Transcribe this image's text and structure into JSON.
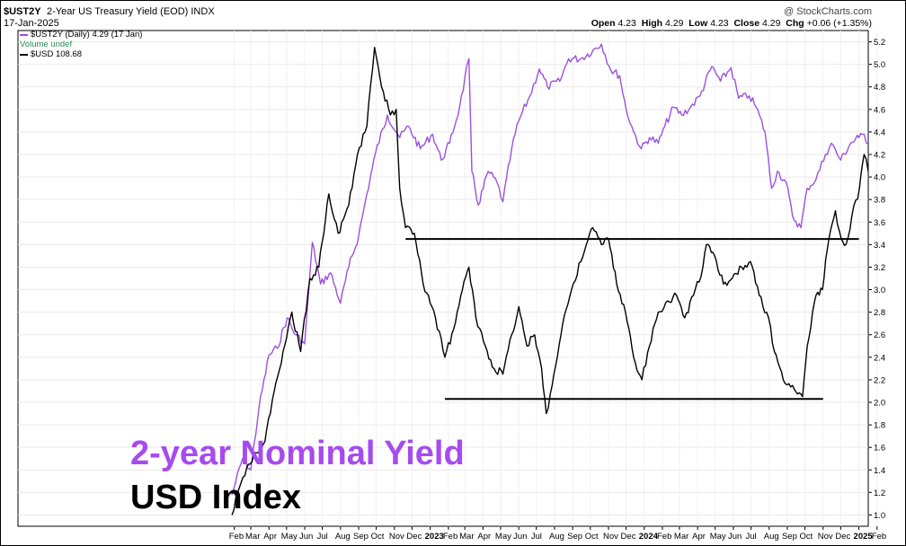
{
  "header": {
    "symbol": "$UST2Y",
    "subtitle": "2-Year US Treasury Yield (EOD)  INDX",
    "date": "17-Jan-2025",
    "brand": "@ StockCharts.com",
    "ohlc": {
      "open_label": "Open",
      "open": "4.23",
      "high_label": "High",
      "high": "4.29",
      "low_label": "Low",
      "low": "4.23",
      "close_label": "Close",
      "close": "4.29",
      "chg_label": "Chg",
      "chg": "+0.06 (+1.35%)"
    }
  },
  "legend": {
    "items": [
      {
        "label": "$UST2Y (Daily) 4.29 (17 Jan)",
        "color": "#9b51e0"
      },
      {
        "label": "Volume undef",
        "color": "#2e8b57"
      },
      {
        "label": "$USD 108.68",
        "color": "#000000"
      }
    ]
  },
  "annotations": {
    "line1": "2-year Nominal Yield",
    "line1_color": "#a64bf0",
    "line2": "USD Index",
    "line2_color": "#000000"
  },
  "chart_data": {
    "type": "line",
    "x_start": "2021-01-28",
    "x_end": "2025-01-17",
    "x_axis_ticks": [
      "Feb",
      "Mar",
      "Apr",
      "May",
      "Jun",
      "Jul",
      "Aug",
      "Sep",
      "Oct",
      "Nov",
      "Dec",
      "2023",
      "Feb",
      "Mar",
      "Apr",
      "May",
      "Jun",
      "Jul",
      "Aug",
      "Sep",
      "Oct",
      "Nov",
      "Dec",
      "2024",
      "Feb",
      "Mar",
      "Apr",
      "May",
      "Jun",
      "Jul",
      "Aug",
      "Sep",
      "Oct",
      "Nov",
      "Dec",
      "2025",
      "Feb"
    ],
    "ylim": [
      0.9,
      5.3
    ],
    "y_ticks": [
      1.0,
      1.2,
      1.4,
      1.6,
      1.8,
      2.0,
      2.2,
      2.4,
      2.6,
      2.8,
      3.0,
      3.2,
      3.4,
      3.6,
      3.8,
      4.0,
      4.2,
      4.4,
      4.6,
      4.8,
      5.0,
      5.2
    ],
    "grid": true,
    "legend_position": "top-left",
    "series": [
      {
        "name": "$UST2Y",
        "color": "#9b51e0",
        "points": [
          [
            "2022-01-28",
            1.18
          ],
          [
            "2022-02-15",
            1.5
          ],
          [
            "2022-03-01",
            1.4
          ],
          [
            "2022-03-15",
            1.95
          ],
          [
            "2022-04-01",
            2.42
          ],
          [
            "2022-04-15",
            2.48
          ],
          [
            "2022-05-02",
            2.75
          ],
          [
            "2022-05-16",
            2.6
          ],
          [
            "2022-06-01",
            2.52
          ],
          [
            "2022-06-14",
            3.42
          ],
          [
            "2022-06-28",
            3.05
          ],
          [
            "2022-07-15",
            3.15
          ],
          [
            "2022-08-01",
            2.88
          ],
          [
            "2022-08-15",
            3.2
          ],
          [
            "2022-09-01",
            3.48
          ],
          [
            "2022-09-15",
            3.85
          ],
          [
            "2022-09-30",
            4.22
          ],
          [
            "2022-10-20",
            4.55
          ],
          [
            "2022-11-10",
            4.35
          ],
          [
            "2022-11-25",
            4.45
          ],
          [
            "2022-12-15",
            4.25
          ],
          [
            "2023-01-05",
            4.38
          ],
          [
            "2023-01-20",
            4.15
          ],
          [
            "2023-02-03",
            4.3
          ],
          [
            "2023-02-20",
            4.62
          ],
          [
            "2023-03-08",
            5.05
          ],
          [
            "2023-03-13",
            4.05
          ],
          [
            "2023-03-24",
            3.75
          ],
          [
            "2023-04-10",
            4.05
          ],
          [
            "2023-04-25",
            3.95
          ],
          [
            "2023-05-05",
            3.78
          ],
          [
            "2023-05-20",
            4.25
          ],
          [
            "2023-06-01",
            4.5
          ],
          [
            "2023-06-20",
            4.72
          ],
          [
            "2023-07-06",
            4.96
          ],
          [
            "2023-07-20",
            4.8
          ],
          [
            "2023-08-10",
            4.85
          ],
          [
            "2023-08-25",
            5.05
          ],
          [
            "2023-09-15",
            5.05
          ],
          [
            "2023-10-05",
            5.12
          ],
          [
            "2023-10-20",
            5.18
          ],
          [
            "2023-11-05",
            4.95
          ],
          [
            "2023-11-20",
            4.9
          ],
          [
            "2023-12-01",
            4.6
          ],
          [
            "2023-12-14",
            4.4
          ],
          [
            "2023-12-27",
            4.25
          ],
          [
            "2024-01-10",
            4.35
          ],
          [
            "2024-01-25",
            4.3
          ],
          [
            "2024-02-05",
            4.45
          ],
          [
            "2024-02-20",
            4.62
          ],
          [
            "2024-03-05",
            4.55
          ],
          [
            "2024-03-20",
            4.62
          ],
          [
            "2024-04-05",
            4.72
          ],
          [
            "2024-04-25",
            4.98
          ],
          [
            "2024-05-10",
            4.85
          ],
          [
            "2024-05-28",
            4.97
          ],
          [
            "2024-06-10",
            4.7
          ],
          [
            "2024-06-28",
            4.72
          ],
          [
            "2024-07-10",
            4.62
          ],
          [
            "2024-07-25",
            4.4
          ],
          [
            "2024-08-05",
            3.9
          ],
          [
            "2024-08-15",
            4.05
          ],
          [
            "2024-08-30",
            3.95
          ],
          [
            "2024-09-10",
            3.65
          ],
          [
            "2024-09-24",
            3.55
          ],
          [
            "2024-10-05",
            3.9
          ],
          [
            "2024-10-20",
            3.98
          ],
          [
            "2024-11-05",
            4.2
          ],
          [
            "2024-11-15",
            4.3
          ],
          [
            "2024-12-01",
            4.15
          ],
          [
            "2024-12-18",
            4.3
          ],
          [
            "2025-01-01",
            4.35
          ],
          [
            "2025-01-10",
            4.38
          ],
          [
            "2025-01-17",
            4.29
          ]
        ]
      },
      {
        "name": "$USD",
        "color": "#000000",
        "points": [
          [
            "2022-01-28",
            1.0
          ],
          [
            "2022-02-10",
            1.25
          ],
          [
            "2022-02-25",
            1.45
          ],
          [
            "2022-03-10",
            1.55
          ],
          [
            "2022-03-25",
            1.65
          ],
          [
            "2022-04-10",
            2.1
          ],
          [
            "2022-04-25",
            2.45
          ],
          [
            "2022-05-10",
            2.8
          ],
          [
            "2022-05-25",
            2.45
          ],
          [
            "2022-06-10",
            3.1
          ],
          [
            "2022-06-25",
            3.2
          ],
          [
            "2022-07-12",
            3.85
          ],
          [
            "2022-07-28",
            3.5
          ],
          [
            "2022-08-15",
            3.75
          ],
          [
            "2022-08-30",
            4.2
          ],
          [
            "2022-09-15",
            4.45
          ],
          [
            "2022-09-28",
            5.15
          ],
          [
            "2022-10-10",
            4.8
          ],
          [
            "2022-10-25",
            4.55
          ],
          [
            "2022-11-04",
            4.6
          ],
          [
            "2022-11-10",
            3.9
          ],
          [
            "2022-11-20",
            3.55
          ],
          [
            "2022-12-05",
            3.5
          ],
          [
            "2022-12-20",
            3.05
          ],
          [
            "2023-01-10",
            2.75
          ],
          [
            "2023-01-26",
            2.4
          ],
          [
            "2023-02-10",
            2.65
          ],
          [
            "2023-02-25",
            3.0
          ],
          [
            "2023-03-08",
            3.2
          ],
          [
            "2023-03-20",
            2.75
          ],
          [
            "2023-04-05",
            2.5
          ],
          [
            "2023-04-20",
            2.3
          ],
          [
            "2023-05-05",
            2.25
          ],
          [
            "2023-05-20",
            2.6
          ],
          [
            "2023-06-01",
            2.85
          ],
          [
            "2023-06-15",
            2.5
          ],
          [
            "2023-06-28",
            2.6
          ],
          [
            "2023-07-10",
            2.3
          ],
          [
            "2023-07-18",
            1.9
          ],
          [
            "2023-07-28",
            2.15
          ],
          [
            "2023-08-15",
            2.7
          ],
          [
            "2023-08-30",
            3.0
          ],
          [
            "2023-09-15",
            3.25
          ],
          [
            "2023-09-30",
            3.5
          ],
          [
            "2023-10-05",
            3.55
          ],
          [
            "2023-10-20",
            3.4
          ],
          [
            "2023-11-01",
            3.45
          ],
          [
            "2023-11-15",
            3.05
          ],
          [
            "2023-11-30",
            2.8
          ],
          [
            "2023-12-14",
            2.4
          ],
          [
            "2023-12-28",
            2.2
          ],
          [
            "2024-01-10",
            2.5
          ],
          [
            "2024-01-25",
            2.8
          ],
          [
            "2024-02-10",
            2.9
          ],
          [
            "2024-02-25",
            2.95
          ],
          [
            "2024-03-10",
            2.75
          ],
          [
            "2024-03-25",
            2.95
          ],
          [
            "2024-04-10",
            3.2
          ],
          [
            "2024-04-16",
            3.4
          ],
          [
            "2024-04-30",
            3.3
          ],
          [
            "2024-05-15",
            3.05
          ],
          [
            "2024-05-30",
            3.1
          ],
          [
            "2024-06-15",
            3.2
          ],
          [
            "2024-06-30",
            3.25
          ],
          [
            "2024-07-15",
            2.95
          ],
          [
            "2024-07-31",
            2.75
          ],
          [
            "2024-08-10",
            2.45
          ],
          [
            "2024-08-25",
            2.2
          ],
          [
            "2024-09-10",
            2.15
          ],
          [
            "2024-09-27",
            2.05
          ],
          [
            "2024-10-05",
            2.5
          ],
          [
            "2024-10-20",
            2.95
          ],
          [
            "2024-10-31",
            3.0
          ],
          [
            "2024-11-08",
            3.35
          ],
          [
            "2024-11-22",
            3.7
          ],
          [
            "2024-12-02",
            3.45
          ],
          [
            "2024-12-10",
            3.4
          ],
          [
            "2024-12-20",
            3.65
          ],
          [
            "2025-01-02",
            3.9
          ],
          [
            "2025-01-10",
            4.2
          ],
          [
            "2025-01-17",
            4.05
          ]
        ]
      }
    ],
    "reference_lines": [
      {
        "x_start": "2022-11-20",
        "x_end": "2025-01-01",
        "y": 3.45
      },
      {
        "x_start": "2023-01-26",
        "x_end": "2024-11-01",
        "y": 2.03
      }
    ]
  }
}
